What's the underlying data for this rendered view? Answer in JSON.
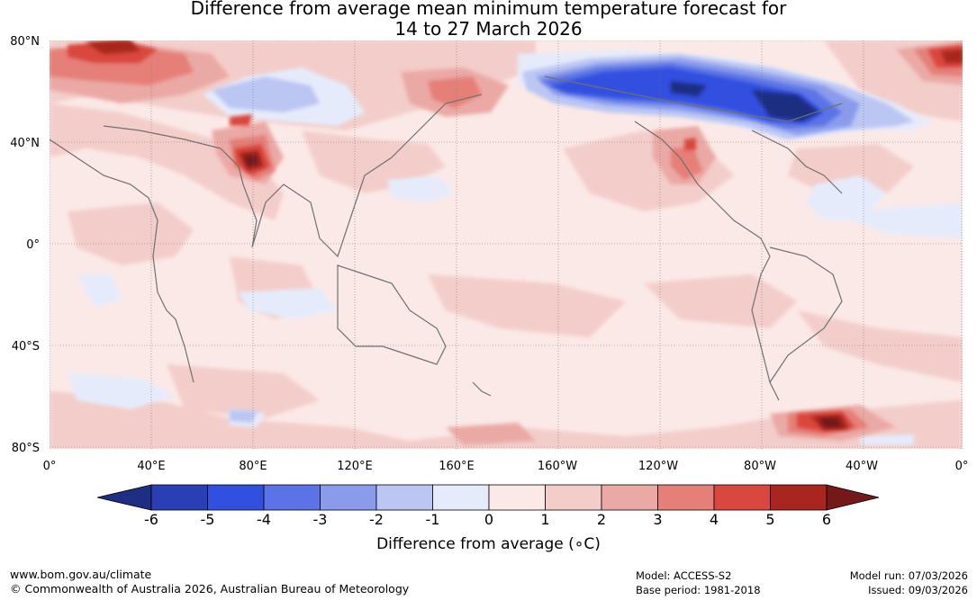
{
  "title": {
    "line1": "Difference from average mean minimum temperature forecast for",
    "line2": "14 to 27 March 2026"
  },
  "map": {
    "lat_labels": [
      "80°N",
      "40°N",
      "0°",
      "40°S",
      "80°S"
    ],
    "lon_labels": [
      "0°",
      "40°E",
      "80°E",
      "120°E",
      "160°E",
      "160°W",
      "120°W",
      "80°W",
      "40°W",
      "0°"
    ]
  },
  "colorbar": {
    "ticks": [
      "-6",
      "-5",
      "-4",
      "-3",
      "-2",
      "-1",
      "0",
      "1",
      "2",
      "3",
      "4",
      "5",
      "6"
    ],
    "colors": [
      "#1f2d82",
      "#2a3fb5",
      "#3150e0",
      "#5b73e6",
      "#8a9bec",
      "#bcc6f3",
      "#e6ebfb",
      "#fbe9e7",
      "#f3cdca",
      "#eba9a5",
      "#e67f78",
      "#d9473e",
      "#a8261f",
      "#74181a"
    ],
    "label": "Difference from average (∘C)"
  },
  "footer": {
    "url": "www.bom.gov.au/climate",
    "copyright": "© Commonwealth of Australia 2026, Australian Bureau of Meteorology",
    "model": "Model: ACCESS-S2",
    "base_period": "Base period: 1981-2018",
    "model_run": "Model run: 07/03/2026",
    "issued": "Issued: 09/03/2026"
  }
}
